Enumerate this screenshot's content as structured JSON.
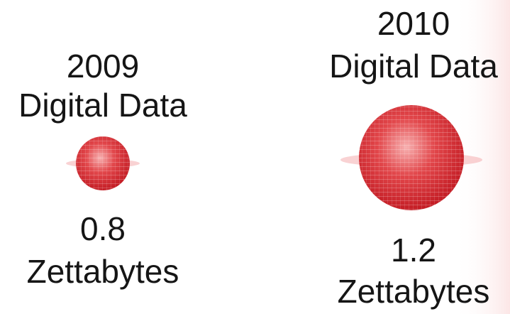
{
  "items": [
    {
      "year": "2009",
      "label": "Digital Data",
      "value": 0.8,
      "unit": "Zettabytes"
    },
    {
      "year": "2010",
      "label": "Digital Data",
      "value": 1.2,
      "unit": "Zettabytes"
    }
  ]
}
